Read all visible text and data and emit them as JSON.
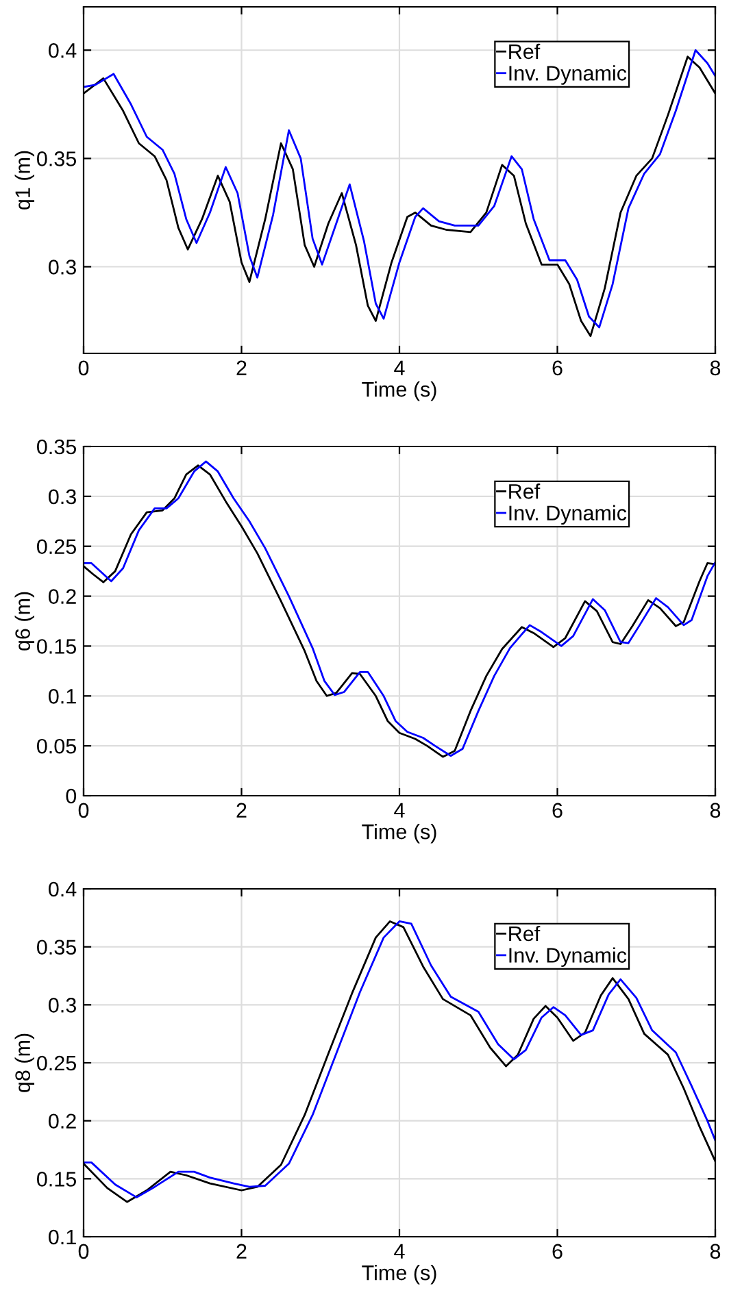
{
  "chart_data": [
    {
      "type": "line",
      "xlabel": "Time (s)",
      "ylabel": "q1 (m)",
      "xlim": [
        0,
        8
      ],
      "xticks": [
        0,
        2,
        4,
        6,
        8
      ],
      "ylim": [
        0.26,
        0.42
      ],
      "yticks": [
        0.3,
        0.35,
        0.4
      ],
      "grid": true,
      "legend": "top right",
      "line_style": "solid",
      "series": [
        {
          "name": "Ref",
          "color": "#000000",
          "x": [
            0,
            0.25,
            0.5,
            0.7,
            0.9,
            1.05,
            1.2,
            1.32,
            1.5,
            1.7,
            1.85,
            2.0,
            2.1,
            2.3,
            2.5,
            2.65,
            2.8,
            2.92,
            3.1,
            3.27,
            3.45,
            3.6,
            3.7,
            3.9,
            4.1,
            4.2,
            4.4,
            4.6,
            4.9,
            5.1,
            5.3,
            5.45,
            5.6,
            5.8,
            6.0,
            6.15,
            6.3,
            6.42,
            6.6,
            6.8,
            7.0,
            7.2,
            7.4,
            7.65,
            7.8,
            8.0
          ],
          "values": [
            0.38,
            0.387,
            0.372,
            0.357,
            0.351,
            0.34,
            0.318,
            0.308,
            0.322,
            0.342,
            0.33,
            0.302,
            0.293,
            0.322,
            0.357,
            0.345,
            0.31,
            0.3,
            0.32,
            0.334,
            0.31,
            0.282,
            0.275,
            0.302,
            0.323,
            0.325,
            0.319,
            0.317,
            0.316,
            0.325,
            0.347,
            0.342,
            0.32,
            0.301,
            0.301,
            0.292,
            0.275,
            0.268,
            0.29,
            0.325,
            0.342,
            0.35,
            0.37,
            0.397,
            0.392,
            0.38
          ]
        },
        {
          "name": "Inv. Dynamic",
          "color": "#0000ff",
          "x": [
            0,
            0.15,
            0.38,
            0.6,
            0.8,
            1.0,
            1.15,
            1.3,
            1.43,
            1.6,
            1.8,
            1.95,
            2.1,
            2.2,
            2.4,
            2.6,
            2.75,
            2.9,
            3.02,
            3.2,
            3.37,
            3.55,
            3.7,
            3.8,
            4.0,
            4.2,
            4.3,
            4.5,
            4.7,
            5.0,
            5.2,
            5.42,
            5.55,
            5.7,
            5.9,
            6.1,
            6.25,
            6.4,
            6.53,
            6.7,
            6.9,
            7.1,
            7.3,
            7.5,
            7.75,
            7.9,
            8.0
          ],
          "values": [
            0.383,
            0.384,
            0.389,
            0.375,
            0.36,
            0.354,
            0.343,
            0.322,
            0.311,
            0.325,
            0.346,
            0.334,
            0.305,
            0.295,
            0.324,
            0.363,
            0.35,
            0.313,
            0.301,
            0.32,
            0.338,
            0.312,
            0.283,
            0.276,
            0.302,
            0.323,
            0.327,
            0.321,
            0.319,
            0.319,
            0.328,
            0.351,
            0.345,
            0.322,
            0.303,
            0.303,
            0.294,
            0.277,
            0.272,
            0.292,
            0.327,
            0.343,
            0.352,
            0.372,
            0.4,
            0.394,
            0.388
          ]
        }
      ]
    },
    {
      "type": "line",
      "xlabel": "Time (s)",
      "ylabel": "q6 (m)",
      "xlim": [
        0,
        8
      ],
      "xticks": [
        0,
        2,
        4,
        6,
        8
      ],
      "ylim": [
        0,
        0.35
      ],
      "yticks": [
        0,
        0.05,
        0.1,
        0.15,
        0.2,
        0.25,
        0.3,
        0.35
      ],
      "grid": true,
      "legend": "top right",
      "line_style": "solid",
      "series": [
        {
          "name": "Ref",
          "color": "#000000",
          "x": [
            0,
            0.12,
            0.25,
            0.4,
            0.6,
            0.8,
            1.0,
            1.15,
            1.3,
            1.45,
            1.6,
            1.8,
            2.0,
            2.2,
            2.5,
            2.8,
            2.95,
            3.08,
            3.2,
            3.4,
            3.5,
            3.7,
            3.85,
            4.0,
            4.2,
            4.35,
            4.55,
            4.7,
            4.9,
            5.1,
            5.3,
            5.55,
            5.7,
            5.95,
            6.1,
            6.35,
            6.5,
            6.7,
            6.8,
            6.95,
            7.15,
            7.3,
            7.5,
            7.6,
            7.8,
            7.9,
            8.0
          ],
          "values": [
            0.23,
            0.222,
            0.214,
            0.225,
            0.262,
            0.284,
            0.286,
            0.298,
            0.322,
            0.331,
            0.322,
            0.295,
            0.27,
            0.243,
            0.195,
            0.145,
            0.115,
            0.1,
            0.103,
            0.123,
            0.122,
            0.1,
            0.075,
            0.063,
            0.057,
            0.05,
            0.039,
            0.045,
            0.085,
            0.12,
            0.147,
            0.169,
            0.163,
            0.149,
            0.158,
            0.195,
            0.185,
            0.154,
            0.152,
            0.17,
            0.196,
            0.188,
            0.17,
            0.174,
            0.215,
            0.233,
            0.232
          ]
        },
        {
          "name": "Inv. Dynamic",
          "color": "#0000ff",
          "x": [
            0,
            0.1,
            0.35,
            0.5,
            0.7,
            0.9,
            1.05,
            1.2,
            1.4,
            1.55,
            1.7,
            1.9,
            2.1,
            2.3,
            2.6,
            2.9,
            3.05,
            3.18,
            3.3,
            3.5,
            3.6,
            3.8,
            3.95,
            4.1,
            4.3,
            4.45,
            4.65,
            4.8,
            5.0,
            5.2,
            5.4,
            5.65,
            5.8,
            6.05,
            6.2,
            6.45,
            6.6,
            6.8,
            6.9,
            7.05,
            7.25,
            7.4,
            7.6,
            7.7,
            7.9,
            8.0
          ],
          "values": [
            0.233,
            0.233,
            0.215,
            0.228,
            0.266,
            0.288,
            0.288,
            0.298,
            0.325,
            0.335,
            0.325,
            0.298,
            0.275,
            0.248,
            0.2,
            0.148,
            0.115,
            0.101,
            0.104,
            0.124,
            0.124,
            0.1,
            0.075,
            0.064,
            0.058,
            0.05,
            0.04,
            0.047,
            0.085,
            0.12,
            0.148,
            0.171,
            0.164,
            0.15,
            0.16,
            0.197,
            0.186,
            0.154,
            0.153,
            0.172,
            0.198,
            0.189,
            0.171,
            0.176,
            0.22,
            0.234
          ]
        }
      ]
    },
    {
      "type": "line",
      "xlabel": "Time (s)",
      "ylabel": "q8 (m)",
      "xlim": [
        0,
        8
      ],
      "xticks": [
        0,
        2,
        4,
        6,
        8
      ],
      "ylim": [
        0.1,
        0.4
      ],
      "yticks": [
        0.1,
        0.15,
        0.2,
        0.25,
        0.3,
        0.35,
        0.4
      ],
      "grid": true,
      "legend": "top right",
      "line_style": "solid",
      "series": [
        {
          "name": "Ref",
          "color": "#000000",
          "x": [
            0,
            0.3,
            0.55,
            0.8,
            1.1,
            1.3,
            1.6,
            2.0,
            2.2,
            2.5,
            2.8,
            3.1,
            3.4,
            3.7,
            3.88,
            4.05,
            4.3,
            4.55,
            4.9,
            5.15,
            5.35,
            5.5,
            5.7,
            5.85,
            6.0,
            6.2,
            6.35,
            6.55,
            6.7,
            6.9,
            7.1,
            7.4,
            7.6,
            7.8,
            8.0
          ],
          "values": [
            0.163,
            0.142,
            0.13,
            0.14,
            0.156,
            0.153,
            0.146,
            0.14,
            0.143,
            0.162,
            0.205,
            0.258,
            0.31,
            0.358,
            0.372,
            0.367,
            0.333,
            0.305,
            0.291,
            0.263,
            0.247,
            0.257,
            0.288,
            0.299,
            0.289,
            0.269,
            0.276,
            0.308,
            0.323,
            0.305,
            0.275,
            0.257,
            0.228,
            0.195,
            0.165
          ]
        },
        {
          "name": "Inv. Dynamic",
          "color": "#0000ff",
          "x": [
            0,
            0.1,
            0.4,
            0.67,
            0.9,
            1.2,
            1.4,
            1.6,
            1.9,
            2.1,
            2.3,
            2.6,
            2.9,
            3.2,
            3.5,
            3.8,
            4.0,
            4.15,
            4.4,
            4.65,
            5.0,
            5.25,
            5.45,
            5.6,
            5.8,
            5.95,
            6.1,
            6.3,
            6.45,
            6.65,
            6.8,
            7.0,
            7.2,
            7.5,
            7.7,
            7.9,
            8.0
          ],
          "values": [
            0.164,
            0.164,
            0.145,
            0.134,
            0.143,
            0.156,
            0.156,
            0.151,
            0.146,
            0.143,
            0.144,
            0.163,
            0.205,
            0.258,
            0.311,
            0.358,
            0.372,
            0.37,
            0.334,
            0.307,
            0.294,
            0.266,
            0.253,
            0.261,
            0.289,
            0.298,
            0.291,
            0.274,
            0.278,
            0.309,
            0.322,
            0.306,
            0.278,
            0.259,
            0.23,
            0.2,
            0.183
          ]
        }
      ]
    }
  ]
}
